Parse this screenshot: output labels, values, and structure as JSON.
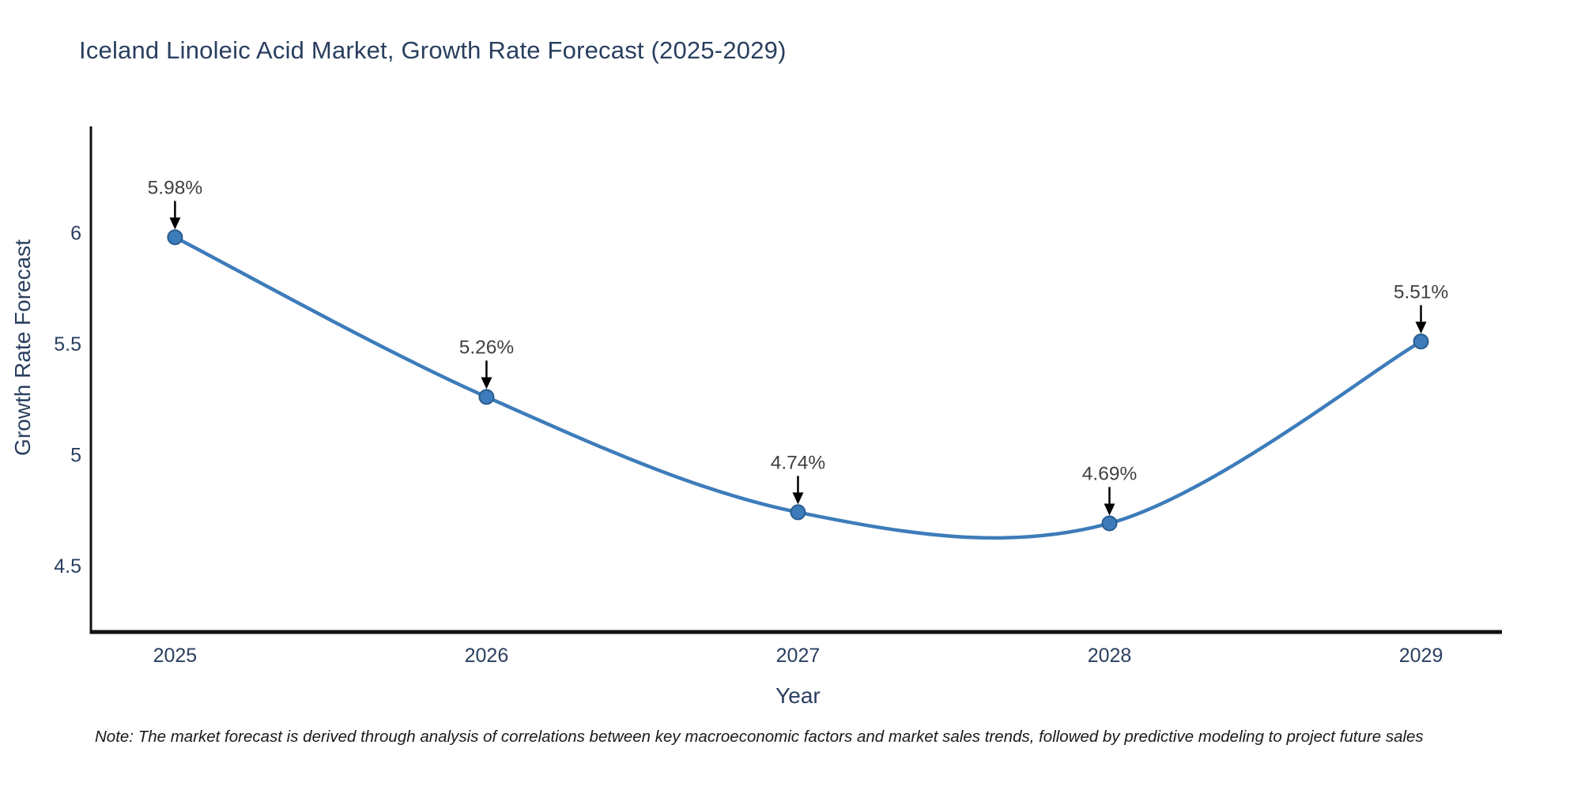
{
  "page": {
    "background": "#ffffff"
  },
  "chart": {
    "note": "Note: The market forecast is derived through analysis of correlations between key macroeconomic factors and market sales trends, followed by predictive modeling to project future sales"
  },
  "chart_data": {
    "type": "line",
    "title": "Iceland Linoleic Acid Market, Growth Rate Forecast (2025-2029)",
    "x": [
      2025,
      2026,
      2027,
      2028,
      2029
    ],
    "categories": [
      "2025",
      "2026",
      "2027",
      "2028",
      "2029"
    ],
    "values": [
      5.98,
      5.26,
      4.74,
      4.69,
      5.51
    ],
    "point_labels": [
      "5.98%",
      "5.26%",
      "4.74%",
      "4.69%",
      "5.51%"
    ],
    "xlabel": "Year",
    "ylabel": "Growth Rate Forecast",
    "yticks": [
      4.5,
      5,
      5.5,
      6
    ],
    "ytick_labels": [
      "4.5",
      "5",
      "5.5",
      "6"
    ],
    "xlim": [
      2024.73,
      2029.26
    ],
    "ylim": [
      4.2,
      6.48
    ],
    "grid": false,
    "legend_position": "none",
    "line_shape": "spline",
    "annotations_have_arrows": true,
    "colors": {
      "line": "#3d7cba",
      "marker_fill": "#3d7cba",
      "marker_edge": "#2a5d8f",
      "axis_line": "#111111",
      "title_text": "#2a3f5f",
      "tick_text": "#2a3f5f",
      "axis_title_text": "#2a3f5f",
      "annotation_text": "#404040",
      "arrow": "#000000",
      "background": "#ffffff"
    }
  }
}
